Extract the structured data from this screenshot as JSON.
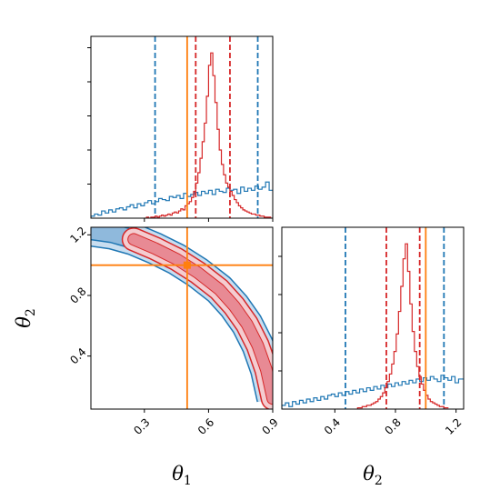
{
  "colors": {
    "blue": "#1f77b4",
    "red": "#d62728",
    "orange": "#ff7f0e",
    "blue_fill": "#c9def0",
    "red_fill": "#f4ccd0"
  },
  "chart_data": {
    "type": "corner",
    "parameters": [
      {
        "symbol": "θ",
        "subscript": "1"
      },
      {
        "symbol": "θ",
        "subscript": "2"
      }
    ],
    "truth": {
      "theta1": 0.5,
      "theta2": 1.0
    },
    "panels": {
      "theta1_marginal": {
        "type": "histogram",
        "xlim": [
          0.05,
          0.9
        ],
        "xticks": [
          0.3,
          0.6,
          0.9
        ],
        "xtick_labels_shown": false,
        "yticks_shown": true,
        "series": [
          {
            "color": "blue",
            "quantile_lines": [
              0.35,
              0.83
            ],
            "bins": [
              0.05,
              0.0667,
              0.0833,
              0.1,
              0.1167,
              0.1333,
              0.15,
              0.1667,
              0.1833,
              0.2,
              0.2167,
              0.2333,
              0.25,
              0.2667,
              0.2833,
              0.3,
              0.3167,
              0.3333,
              0.35,
              0.3667,
              0.3833,
              0.4,
              0.4167,
              0.4333,
              0.45,
              0.4667,
              0.4833,
              0.5,
              0.5167,
              0.5333,
              0.55,
              0.5667,
              0.5833,
              0.6,
              0.6167,
              0.6333,
              0.65,
              0.6667,
              0.6833,
              0.7,
              0.7167,
              0.7333,
              0.75,
              0.7667,
              0.7833,
              0.8,
              0.8167,
              0.8333,
              0.85,
              0.8667,
              0.8833,
              0.9
            ],
            "counts": [
              2,
              4,
              3,
              7,
              5,
              8,
              6,
              9,
              10,
              8,
              11,
              13,
              10,
              14,
              12,
              15,
              17,
              14,
              16,
              19,
              18,
              17,
              21,
              20,
              22,
              19,
              24,
              21,
              23,
              25,
              22,
              26,
              24,
              27,
              23,
              28,
              26,
              25,
              29,
              27,
              28,
              24,
              30,
              26,
              29,
              27,
              31,
              28,
              30,
              35,
              27
            ]
          },
          {
            "color": "red",
            "quantile_lines": [
              0.54,
              0.7
            ],
            "bins": [
              0.3,
              0.31,
              0.32,
              0.33,
              0.34,
              0.35,
              0.36,
              0.37,
              0.38,
              0.39,
              0.4,
              0.41,
              0.42,
              0.43,
              0.44,
              0.45,
              0.46,
              0.47,
              0.48,
              0.49,
              0.5,
              0.51,
              0.52,
              0.53,
              0.54,
              0.55,
              0.56,
              0.57,
              0.58,
              0.59,
              0.6,
              0.61,
              0.62,
              0.63,
              0.64,
              0.65,
              0.66,
              0.67,
              0.68,
              0.69,
              0.7,
              0.71,
              0.72,
              0.73,
              0.74,
              0.75,
              0.76,
              0.77,
              0.78,
              0.79,
              0.8,
              0.81,
              0.82,
              0.83,
              0.84,
              0.85,
              0.86,
              0.87,
              0.88,
              0.89,
              0.9
            ],
            "counts": [
              0,
              1,
              0,
              1,
              1,
              2,
              1,
              2,
              3,
              2,
              3,
              4,
              3,
              5,
              6,
              5,
              7,
              9,
              8,
              12,
              14,
              16,
              20,
              26,
              34,
              44,
              58,
              74,
              92,
              118,
              148,
              160,
              138,
              112,
              86,
              66,
              52,
              42,
              34,
              30,
              26,
              22,
              18,
              15,
              12,
              10,
              8,
              7,
              6,
              5,
              4,
              4,
              3,
              3,
              2,
              2,
              1,
              1,
              1,
              0
            ]
          }
        ]
      },
      "joint": {
        "type": "contour",
        "xlim": [
          0.05,
          0.9
        ],
        "ylim": [
          0.05,
          1.25
        ],
        "xticks": [
          0.3,
          0.6,
          0.9
        ],
        "xtick_labels": [
          "0.3",
          "0.6",
          "0.9"
        ],
        "yticks": [
          0.4,
          0.8,
          1.2
        ],
        "ytick_labels": [
          "0.4",
          "0.8",
          "1.2"
        ],
        "ylabel": "θ₂",
        "xlabel": "θ₁",
        "banana_curve": [
          [
            0.05,
            1.23
          ],
          [
            0.15,
            1.21
          ],
          [
            0.25,
            1.17
          ],
          [
            0.35,
            1.11
          ],
          [
            0.45,
            1.04
          ],
          [
            0.55,
            0.95
          ],
          [
            0.65,
            0.84
          ],
          [
            0.72,
            0.73
          ],
          [
            0.78,
            0.61
          ],
          [
            0.83,
            0.47
          ],
          [
            0.87,
            0.31
          ],
          [
            0.9,
            0.12
          ]
        ],
        "blue_outer_halfwidth": 0.07,
        "blue_inner_halfwidth": 0.04,
        "red_span": [
          0.25,
          0.9
        ],
        "red_outer_halfwidth": 0.05,
        "red_inner_halfwidth": 0.025
      },
      "theta2_marginal": {
        "type": "histogram",
        "xlim": [
          0.05,
          1.25
        ],
        "xticks": [
          0.4,
          0.8,
          1.2
        ],
        "xtick_labels": [
          "0.4",
          "0.8",
          "1.2"
        ],
        "xlabel": "θ₂",
        "series": [
          {
            "color": "blue",
            "quantile_lines": [
              0.47,
              1.12
            ],
            "bins": [
              0.05,
              0.0733,
              0.0967,
              0.12,
              0.1433,
              0.1667,
              0.19,
              0.2133,
              0.2367,
              0.26,
              0.2833,
              0.3067,
              0.33,
              0.3533,
              0.3767,
              0.4,
              0.4233,
              0.4467,
              0.47,
              0.4933,
              0.5167,
              0.54,
              0.5633,
              0.5867,
              0.61,
              0.6333,
              0.6567,
              0.68,
              0.7033,
              0.7267,
              0.75,
              0.7733,
              0.7967,
              0.82,
              0.8433,
              0.8667,
              0.89,
              0.9133,
              0.9367,
              0.96,
              0.9833,
              1.0067,
              1.03,
              1.0533,
              1.0767,
              1.1,
              1.1233,
              1.1467,
              1.17,
              1.1933,
              1.2167,
              1.25
            ],
            "counts": [
              3,
              5,
              2,
              6,
              4,
              7,
              5,
              8,
              6,
              9,
              7,
              10,
              8,
              11,
              12,
              10,
              13,
              11,
              14,
              12,
              15,
              13,
              16,
              14,
              17,
              15,
              18,
              16,
              19,
              17,
              20,
              18,
              21,
              19,
              22,
              20,
              23,
              21,
              24,
              22,
              25,
              23,
              26,
              24,
              22,
              27,
              25,
              23,
              26,
              21,
              24
            ]
          },
          {
            "color": "red",
            "quantile_lines": [
              0.74,
              0.96
            ],
            "bins": [
              0.55,
              0.565,
              0.58,
              0.595,
              0.61,
              0.625,
              0.64,
              0.655,
              0.67,
              0.685,
              0.7,
              0.715,
              0.73,
              0.745,
              0.76,
              0.775,
              0.79,
              0.805,
              0.82,
              0.835,
              0.85,
              0.865,
              0.88,
              0.895,
              0.91,
              0.925,
              0.94,
              0.955,
              0.97,
              0.985,
              1.0,
              1.015,
              1.03,
              1.045,
              1.06,
              1.075,
              1.09,
              1.105,
              1.12,
              1.135,
              1.15
            ],
            "counts": [
              1,
              1,
              2,
              2,
              3,
              3,
              4,
              5,
              6,
              8,
              10,
              13,
              17,
              22,
              28,
              36,
              46,
              60,
              78,
              98,
              120,
              132,
              110,
              84,
              62,
              46,
              34,
              26,
              20,
              15,
              11,
              8,
              6,
              5,
              4,
              3,
              2,
              2,
              1,
              1
            ]
          }
        ]
      }
    }
  }
}
